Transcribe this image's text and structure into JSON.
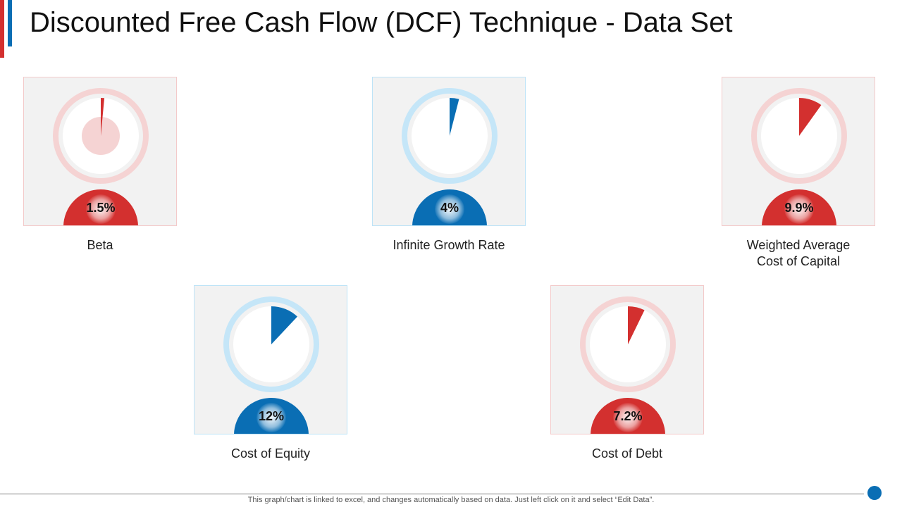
{
  "page": {
    "title": "Discounted Free Cash Flow (DCF) Technique - Data Set",
    "footer_note": "This graph/chart is linked to excel, and changes automatically based on data. Just left click on it and select “Edit Data”."
  },
  "colors": {
    "red": "#d3302f",
    "red_light": "#f5d3d3",
    "blue": "#0a6eb4",
    "blue_light": "#c5e6f8"
  },
  "chart_data": [
    {
      "type": "pie",
      "name": "Beta",
      "value_label": "1.5%",
      "values": [
        1.5,
        98.5
      ],
      "color": "red"
    },
    {
      "type": "pie",
      "name": "Infinite Growth Rate",
      "value_label": "4%",
      "values": [
        4,
        96
      ],
      "color": "blue"
    },
    {
      "type": "pie",
      "name": "Weighted Average Cost of Capital",
      "value_label": "9.9%",
      "values": [
        9.9,
        90.1
      ],
      "color": "red"
    },
    {
      "type": "pie",
      "name": "Cost of Equity",
      "value_label": "12%",
      "values": [
        12,
        88
      ],
      "color": "blue"
    },
    {
      "type": "pie",
      "name": "Cost of Debt",
      "value_label": "7.2%",
      "values": [
        7.2,
        92.8
      ],
      "color": "red"
    }
  ],
  "labels": {
    "beta": "Beta",
    "growth": "Infinite Growth Rate",
    "wacc_line1": "Weighted Average",
    "wacc_line2": "Cost of Capital",
    "equity": "Cost of Equity",
    "debt": "Cost of Debt"
  }
}
